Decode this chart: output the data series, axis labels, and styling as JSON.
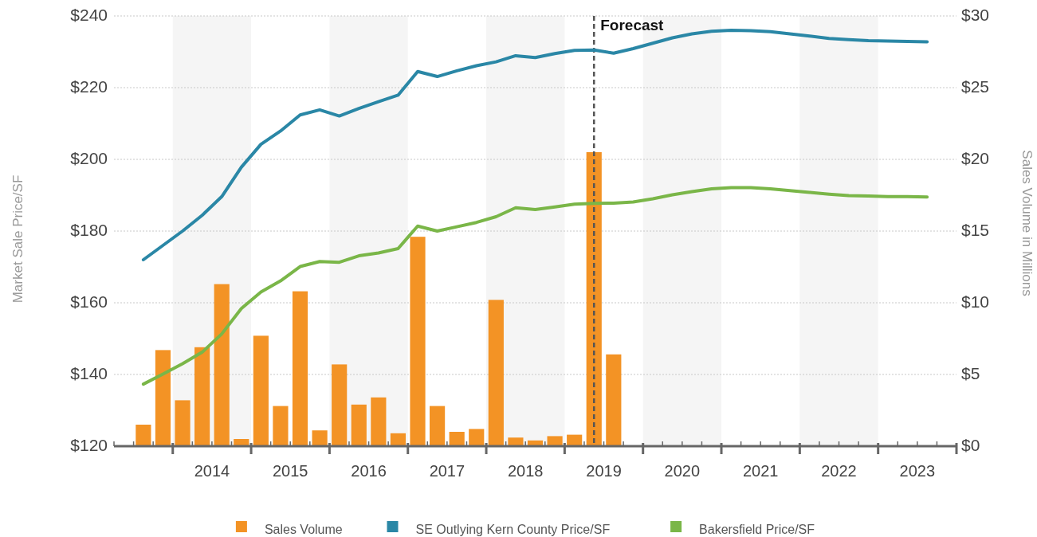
{
  "chart_data": {
    "type": "line",
    "ylabel": "Market Sale Price/SF",
    "y2label": "Sales Volume in Millions",
    "xlim": [
      2013.25,
      2024
    ],
    "xticks": [
      {
        "value": 2013.25,
        "label": null
      },
      {
        "value": 2013.5,
        "label": null
      },
      {
        "value": 2013.75,
        "label": null
      },
      {
        "value": 2014,
        "label": null
      },
      {
        "value": 2014.25,
        "label": null
      },
      {
        "value": 2014.5,
        "label": "2014"
      },
      {
        "value": 2014.75,
        "label": null
      },
      {
        "value": 2015,
        "label": null
      },
      {
        "value": 2015.25,
        "label": null
      },
      {
        "value": 2015.5,
        "label": "2015"
      },
      {
        "value": 2015.75,
        "label": null
      },
      {
        "value": 2016,
        "label": null
      },
      {
        "value": 2016.25,
        "label": null
      },
      {
        "value": 2016.5,
        "label": "2016"
      },
      {
        "value": 2016.75,
        "label": null
      },
      {
        "value": 2017,
        "label": null
      },
      {
        "value": 2017.25,
        "label": null
      },
      {
        "value": 2017.5,
        "label": "2017"
      },
      {
        "value": 2017.75,
        "label": null
      },
      {
        "value": 2018,
        "label": null
      },
      {
        "value": 2018.25,
        "label": null
      },
      {
        "value": 2018.5,
        "label": "2018"
      },
      {
        "value": 2018.75,
        "label": null
      },
      {
        "value": 2019,
        "label": null
      },
      {
        "value": 2019.25,
        "label": null
      },
      {
        "value": 2019.5,
        "label": "2019"
      },
      {
        "value": 2019.75,
        "label": null
      },
      {
        "value": 2020,
        "label": null
      },
      {
        "value": 2020.25,
        "label": null
      },
      {
        "value": 2020.5,
        "label": "2020"
      },
      {
        "value": 2020.75,
        "label": null
      },
      {
        "value": 2021,
        "label": null
      },
      {
        "value": 2021.25,
        "label": null
      },
      {
        "value": 2021.5,
        "label": "2021"
      },
      {
        "value": 2021.75,
        "label": null
      },
      {
        "value": 2022,
        "label": null
      },
      {
        "value": 2022.25,
        "label": null
      },
      {
        "value": 2022.5,
        "label": "2022"
      },
      {
        "value": 2022.75,
        "label": null
      },
      {
        "value": 2023,
        "label": null
      },
      {
        "value": 2023.25,
        "label": null
      },
      {
        "value": 2023.5,
        "label": "2023"
      },
      {
        "value": 2023.75,
        "label": null
      },
      {
        "value": 2024,
        "label": null
      }
    ],
    "ylim": [
      120,
      240
    ],
    "yticks": [
      {
        "value": 120,
        "label": "$120"
      },
      {
        "value": 140,
        "label": "$140"
      },
      {
        "value": 160,
        "label": "$160"
      },
      {
        "value": 180,
        "label": "$180"
      },
      {
        "value": 200,
        "label": "$200"
      },
      {
        "value": 220,
        "label": "$220"
      },
      {
        "value": 240,
        "label": "$240"
      }
    ],
    "y2lim": [
      0,
      30
    ],
    "y2ticks": [
      {
        "value": 0,
        "label": "$0"
      },
      {
        "value": 5,
        "label": "$5"
      },
      {
        "value": 10,
        "label": "$10"
      },
      {
        "value": 15,
        "label": "$15"
      },
      {
        "value": 20,
        "label": "$20"
      },
      {
        "value": 25,
        "label": "$25"
      },
      {
        "value": 30,
        "label": "$30"
      }
    ],
    "grid": "y",
    "legend": "bottom",
    "line_style": "solid",
    "marker": "none",
    "bands": [
      {
        "axis": "x",
        "from": 2014,
        "to": 2015,
        "color": "#f5f5f5"
      },
      {
        "axis": "x",
        "from": 2016,
        "to": 2017,
        "color": "#f5f5f5"
      },
      {
        "axis": "x",
        "from": 2018,
        "to": 2019,
        "color": "#f5f5f5"
      },
      {
        "axis": "x",
        "from": 2020,
        "to": 2021,
        "color": "#f5f5f5"
      },
      {
        "axis": "x",
        "from": 2022,
        "to": 2023,
        "color": "#f5f5f5"
      }
    ],
    "ref_lines": [
      {
        "axis": "x",
        "value": 2019.375,
        "label": "Forecast",
        "color": "#555555",
        "line_style": "dashed"
      }
    ],
    "series": [
      {
        "name": "Sales Volume",
        "type": "bar",
        "axis": "y2",
        "color": "#f39325",
        "x": [
          2013.625,
          2013.875,
          2014.125,
          2014.375,
          2014.625,
          2014.875,
          2015.125,
          2015.375,
          2015.625,
          2015.875,
          2016.125,
          2016.375,
          2016.625,
          2016.875,
          2017.125,
          2017.375,
          2017.625,
          2017.875,
          2018.125,
          2018.375,
          2018.625,
          2018.875,
          2019.125,
          2019.375,
          2019.625
        ],
        "values": [
          1.5,
          6.7,
          3.2,
          6.9,
          11.3,
          0.5,
          7.7,
          2.8,
          10.8,
          1.1,
          5.7,
          2.9,
          3.4,
          0.9,
          14.6,
          2.8,
          1.0,
          1.2,
          10.2,
          0.6,
          0.4,
          0.7,
          0.8,
          20.5,
          6.4
        ]
      },
      {
        "name": "SE Outlying Kern County Price/SF",
        "color": "#2a87a6",
        "x": [
          2013.625,
          2013.875,
          2014.125,
          2014.375,
          2014.625,
          2014.875,
          2015.125,
          2015.375,
          2015.625,
          2015.875,
          2016.125,
          2016.375,
          2016.625,
          2016.875,
          2017.125,
          2017.375,
          2017.625,
          2017.875,
          2018.125,
          2018.375,
          2018.625,
          2018.875,
          2019.125,
          2019.375,
          2019.625,
          2019.875,
          2020.125,
          2020.375,
          2020.625,
          2020.875,
          2021.125,
          2021.375,
          2021.625,
          2021.875,
          2022.125,
          2022.375,
          2022.625,
          2022.875,
          2023.125,
          2023.375,
          2023.625
        ],
        "values": [
          172,
          176,
          180,
          184.4,
          189.6,
          197.8,
          204.2,
          207.9,
          212.4,
          213.8,
          212.1,
          214.2,
          216.1,
          217.9,
          224.5,
          223.1,
          224.7,
          226.1,
          227.2,
          228.9,
          228.4,
          229.5,
          230.4,
          230.5,
          229.6,
          230.9,
          232.4,
          233.9,
          235,
          235.7,
          236,
          235.9,
          235.6,
          235,
          234.4,
          233.7,
          233.4,
          233.1,
          233,
          232.9,
          232.8
        ]
      },
      {
        "name": "Bakersfield Price/SF",
        "color": "#7ab648",
        "x": [
          2013.625,
          2013.875,
          2014.125,
          2014.375,
          2014.625,
          2014.875,
          2015.125,
          2015.375,
          2015.625,
          2015.875,
          2016.125,
          2016.375,
          2016.625,
          2016.875,
          2017.125,
          2017.375,
          2017.625,
          2017.875,
          2018.125,
          2018.375,
          2018.625,
          2018.875,
          2019.125,
          2019.375,
          2019.625,
          2019.875,
          2020.125,
          2020.375,
          2020.625,
          2020.875,
          2021.125,
          2021.375,
          2021.625,
          2021.875,
          2022.125,
          2022.375,
          2022.625,
          2022.875,
          2023.125,
          2023.375,
          2023.625
        ],
        "values": [
          137.3,
          140.1,
          143,
          146.2,
          151.3,
          158.4,
          163,
          166.1,
          170.1,
          171.5,
          171.3,
          173.1,
          173.9,
          175.1,
          181.4,
          180,
          181.2,
          182.4,
          184,
          186.5,
          186,
          186.7,
          187.5,
          187.7,
          187.8,
          188.1,
          189,
          190.1,
          191,
          191.8,
          192.1,
          192.1,
          191.8,
          191.3,
          190.8,
          190.3,
          189.9,
          189.8,
          189.6,
          189.6,
          189.5
        ]
      }
    ]
  }
}
